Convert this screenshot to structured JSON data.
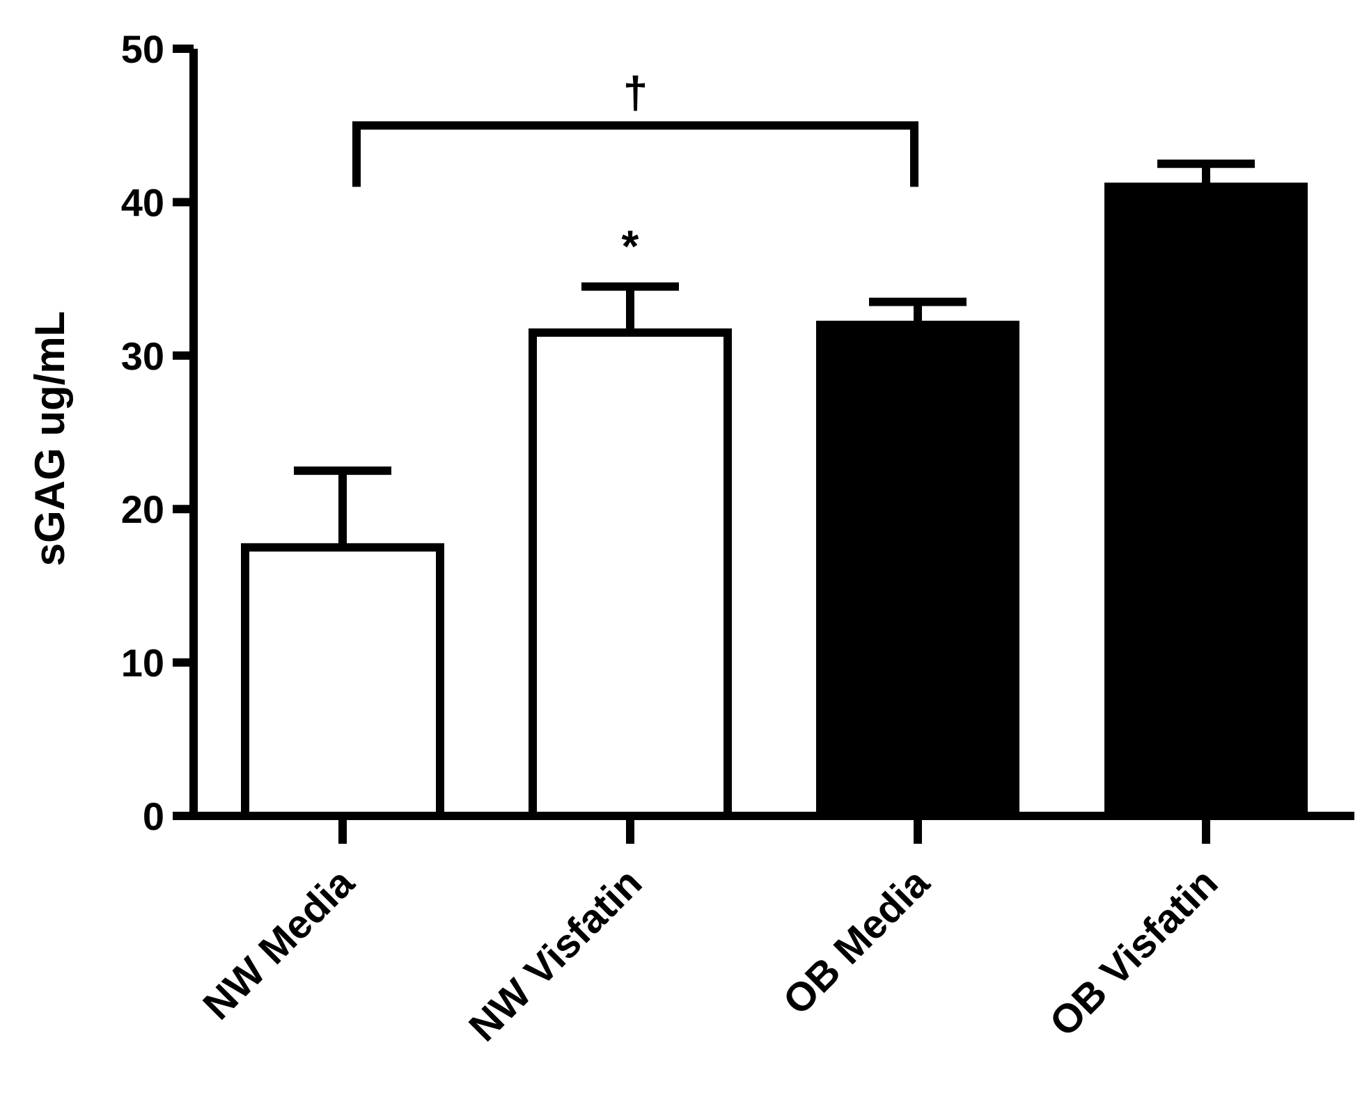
{
  "chart_data": {
    "type": "bar",
    "title": "",
    "xlabel": "",
    "ylabel": "sGAG ug/mL",
    "ylim": [
      0,
      50
    ],
    "yticks": [
      0,
      10,
      20,
      30,
      40,
      50
    ],
    "grid": false,
    "categories": [
      "NW Media",
      "NW Visfatin",
      "OB Media",
      "OB Visfatin"
    ],
    "values": [
      17.5,
      31.5,
      32,
      41
    ],
    "error_upper": [
      22.5,
      34.5,
      33.5,
      42.5
    ],
    "fill_colors": [
      "#ffffff",
      "#ffffff",
      "#000000",
      "#000000"
    ],
    "edge_color": "#000000",
    "annotations": [
      {
        "label": "*",
        "category_index": 1,
        "y": 37.5
      },
      {
        "label": "†",
        "from_index": 0,
        "to_index": 2,
        "bracket_y": 45,
        "bracket_drop_y": 41,
        "y": 47.5
      }
    ]
  }
}
